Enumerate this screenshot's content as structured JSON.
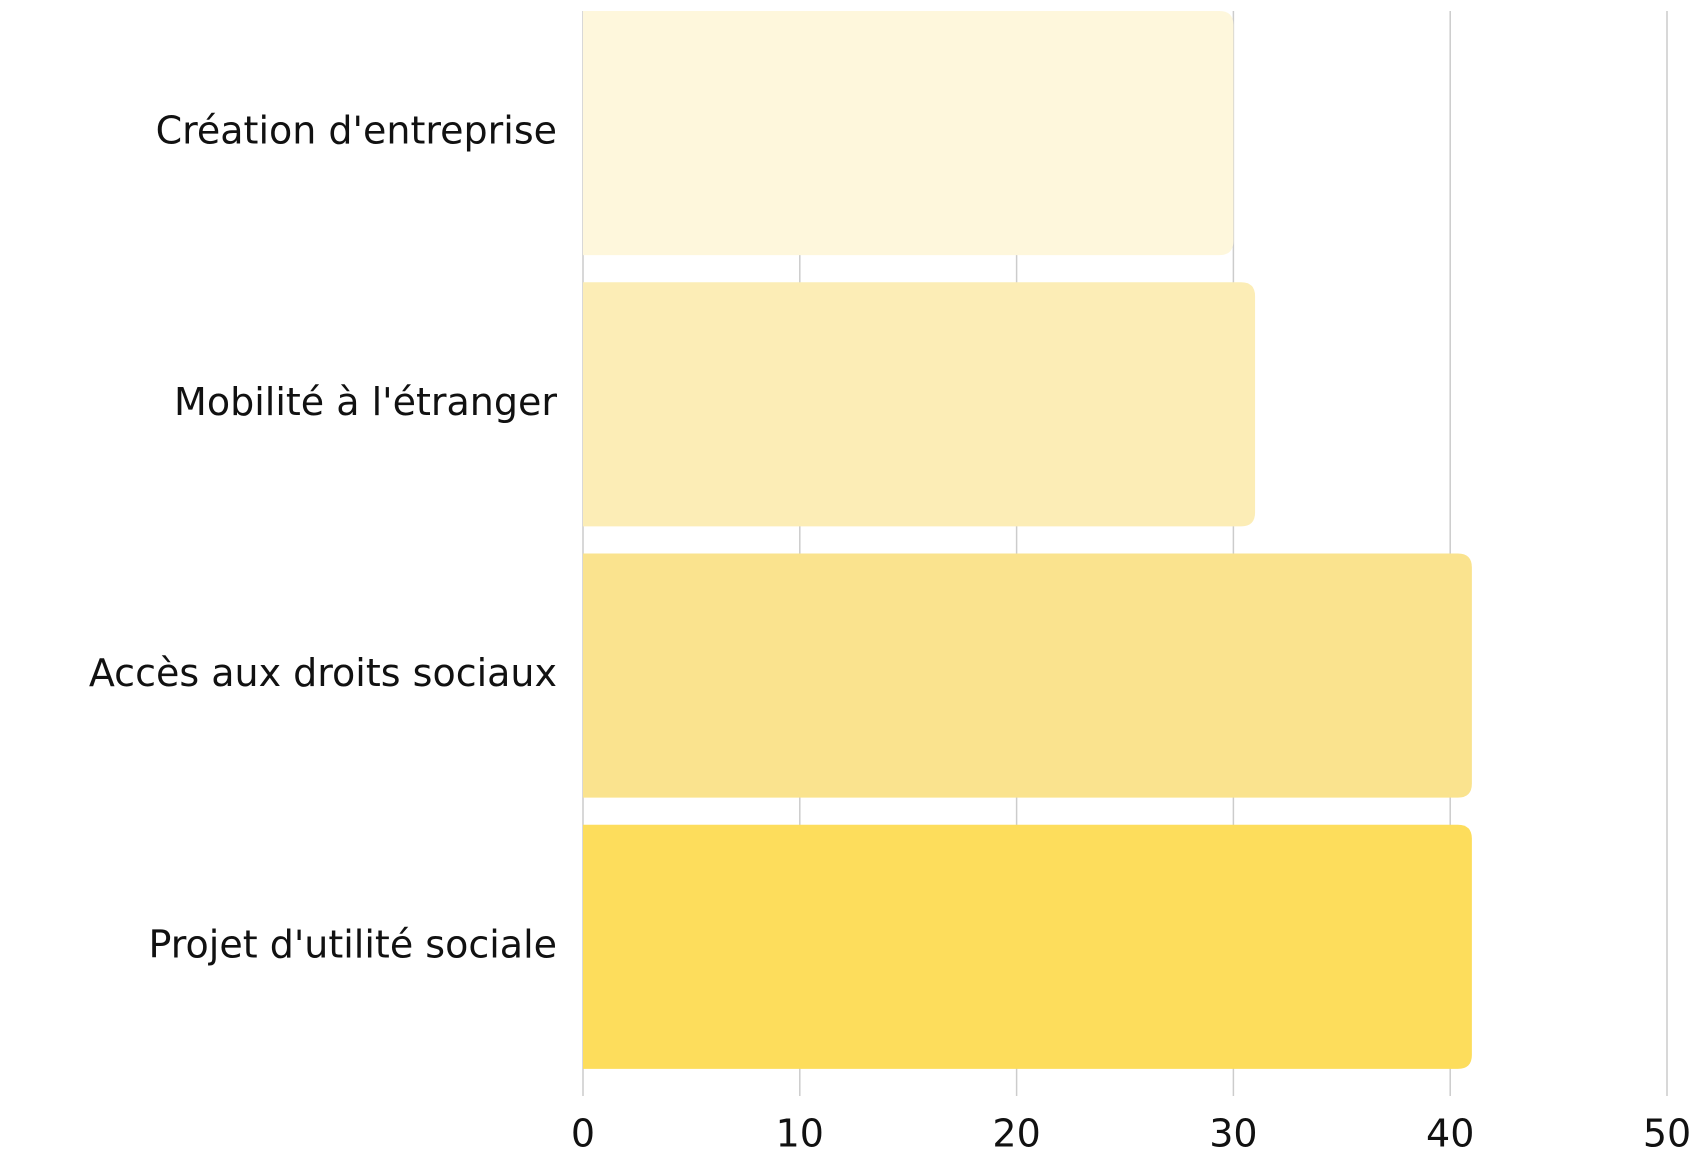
{
  "chart_data": {
    "type": "barh",
    "categories": [
      "Création d'entreprise",
      "Mobilité à l'étranger",
      "Accès aux droits sociaux",
      "Projet d'utilité sociale"
    ],
    "values": [
      30,
      31,
      41,
      41
    ],
    "colors": [
      "#fef7dc",
      "#fcedb6",
      "#fae38e",
      "#fddd5c"
    ],
    "xlim": [
      0,
      50
    ],
    "xticks": [
      0,
      10,
      20,
      30,
      40,
      50
    ],
    "grid": true
  }
}
